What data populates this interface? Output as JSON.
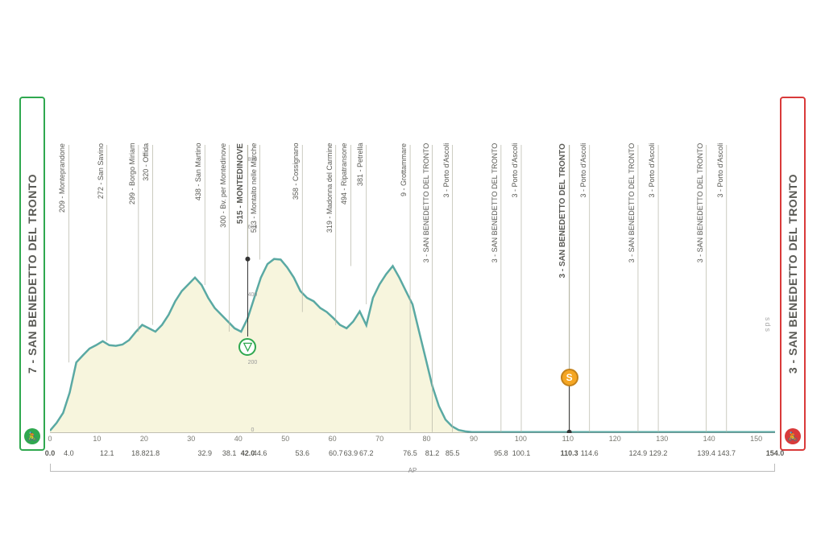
{
  "profile": {
    "type": "area",
    "total_km": 154.0,
    "start": {
      "label": "7 - SAN BENEDETTO DEL TRONTO",
      "color": "#2fa84f"
    },
    "finish": {
      "label": "3 - SAN BENEDETTO DEL TRONTO",
      "color": "#d93a3a"
    },
    "elevation_series_m": [
      7,
      30,
      60,
      120,
      209,
      230,
      250,
      260,
      272,
      260,
      258,
      262,
      275,
      299,
      320,
      310,
      300,
      320,
      350,
      390,
      420,
      440,
      460,
      438,
      400,
      370,
      350,
      330,
      310,
      300,
      340,
      400,
      460,
      500,
      515,
      513,
      490,
      460,
      420,
      400,
      390,
      370,
      358,
      340,
      320,
      310,
      330,
      360,
      319,
      400,
      440,
      470,
      494,
      460,
      420,
      381,
      300,
      220,
      140,
      80,
      40,
      20,
      9,
      5,
      3,
      3,
      3,
      3,
      3,
      3,
      3,
      3,
      3,
      3,
      3,
      3,
      3,
      3,
      3,
      3,
      3,
      3,
      3,
      3,
      3,
      3,
      3,
      3,
      3,
      3,
      3,
      3,
      3,
      3,
      3,
      3,
      3,
      3,
      3,
      3,
      3,
      3,
      3,
      3,
      3,
      3,
      3,
      3,
      3,
      3,
      3
    ],
    "area_fill": "#f7f5dd",
    "line_color": "#5aa9a3",
    "line_width": 2.5,
    "background": "#ffffff",
    "max_elev_display": 900,
    "elev_ticks": [
      0,
      200,
      400,
      600,
      800
    ],
    "x_ticks": [
      0,
      10,
      20,
      30,
      40,
      50,
      60,
      70,
      80,
      90,
      100,
      110,
      120,
      130,
      140,
      150
    ],
    "km_labels": [
      0.0,
      4.0,
      12.1,
      18.8,
      21.8,
      32.9,
      38.1,
      42.0,
      44.6,
      53.6,
      60.7,
      63.9,
      67.2,
      76.5,
      81.2,
      85.5,
      95.8,
      100.1,
      110.3,
      114.6,
      124.9,
      129.2,
      139.4,
      143.7,
      154.0
    ],
    "waypoints": [
      {
        "km": 4.0,
        "elev": 209,
        "label": "209 - Monteprandone",
        "bold": false
      },
      {
        "km": 12.1,
        "elev": 272,
        "label": "272 - San Savino",
        "bold": false
      },
      {
        "km": 18.8,
        "elev": 299,
        "label": "299 - Borgo Miriam",
        "bold": false
      },
      {
        "km": 21.8,
        "elev": 320,
        "label": "320 - Offida",
        "bold": false
      },
      {
        "km": 32.9,
        "elev": 438,
        "label": "438 - San Martino",
        "bold": false
      },
      {
        "km": 38.1,
        "elev": 300,
        "label": "300 - Bv. per Montedinove",
        "bold": false
      },
      {
        "km": 42.0,
        "elev": 515,
        "label": "515 - MONTEDINOVE",
        "bold": true,
        "kom": true
      },
      {
        "km": 44.6,
        "elev": 513,
        "label": "513 - Montalto nelle Marche",
        "bold": false
      },
      {
        "km": 53.6,
        "elev": 358,
        "label": "358 - Cossignano",
        "bold": false
      },
      {
        "km": 60.7,
        "elev": 319,
        "label": "319 - Madonna del Carmine",
        "bold": false
      },
      {
        "km": 63.9,
        "elev": 494,
        "label": "494 - Ripatransone",
        "bold": false
      },
      {
        "km": 67.2,
        "elev": 381,
        "label": "381 - Petrella",
        "bold": false
      },
      {
        "km": 76.5,
        "elev": 9,
        "label": "9 - Grottammare",
        "bold": false
      },
      {
        "km": 81.2,
        "elev": 3,
        "label": "3 - SAN BENEDETTO DEL TRONTO",
        "bold": false
      },
      {
        "km": 85.5,
        "elev": 3,
        "label": "3 - Porto d'Ascoli",
        "bold": false
      },
      {
        "km": 95.8,
        "elev": 3,
        "label": "3 - SAN BENEDETTO DEL TRONTO",
        "bold": false
      },
      {
        "km": 100.1,
        "elev": 3,
        "label": "3 - Porto d'Ascoli",
        "bold": false
      },
      {
        "km": 110.3,
        "elev": 3,
        "label": "3 - SAN BENEDETTO DEL TRONTO",
        "bold": true,
        "sprint": true
      },
      {
        "km": 114.6,
        "elev": 3,
        "label": "3 - Porto d'Ascoli",
        "bold": false
      },
      {
        "km": 124.9,
        "elev": 3,
        "label": "3 - SAN BENEDETTO DEL TRONTO",
        "bold": false
      },
      {
        "km": 129.2,
        "elev": 3,
        "label": "3 - Porto d'Ascoli",
        "bold": false
      },
      {
        "km": 139.4,
        "elev": 3,
        "label": "3 - SAN BENEDETTO DEL TRONTO",
        "bold": false
      },
      {
        "km": 143.7,
        "elev": 3,
        "label": "3 - Porto d'Ascoli",
        "bold": false
      }
    ],
    "province_label": "AP",
    "watermark": "sds"
  }
}
